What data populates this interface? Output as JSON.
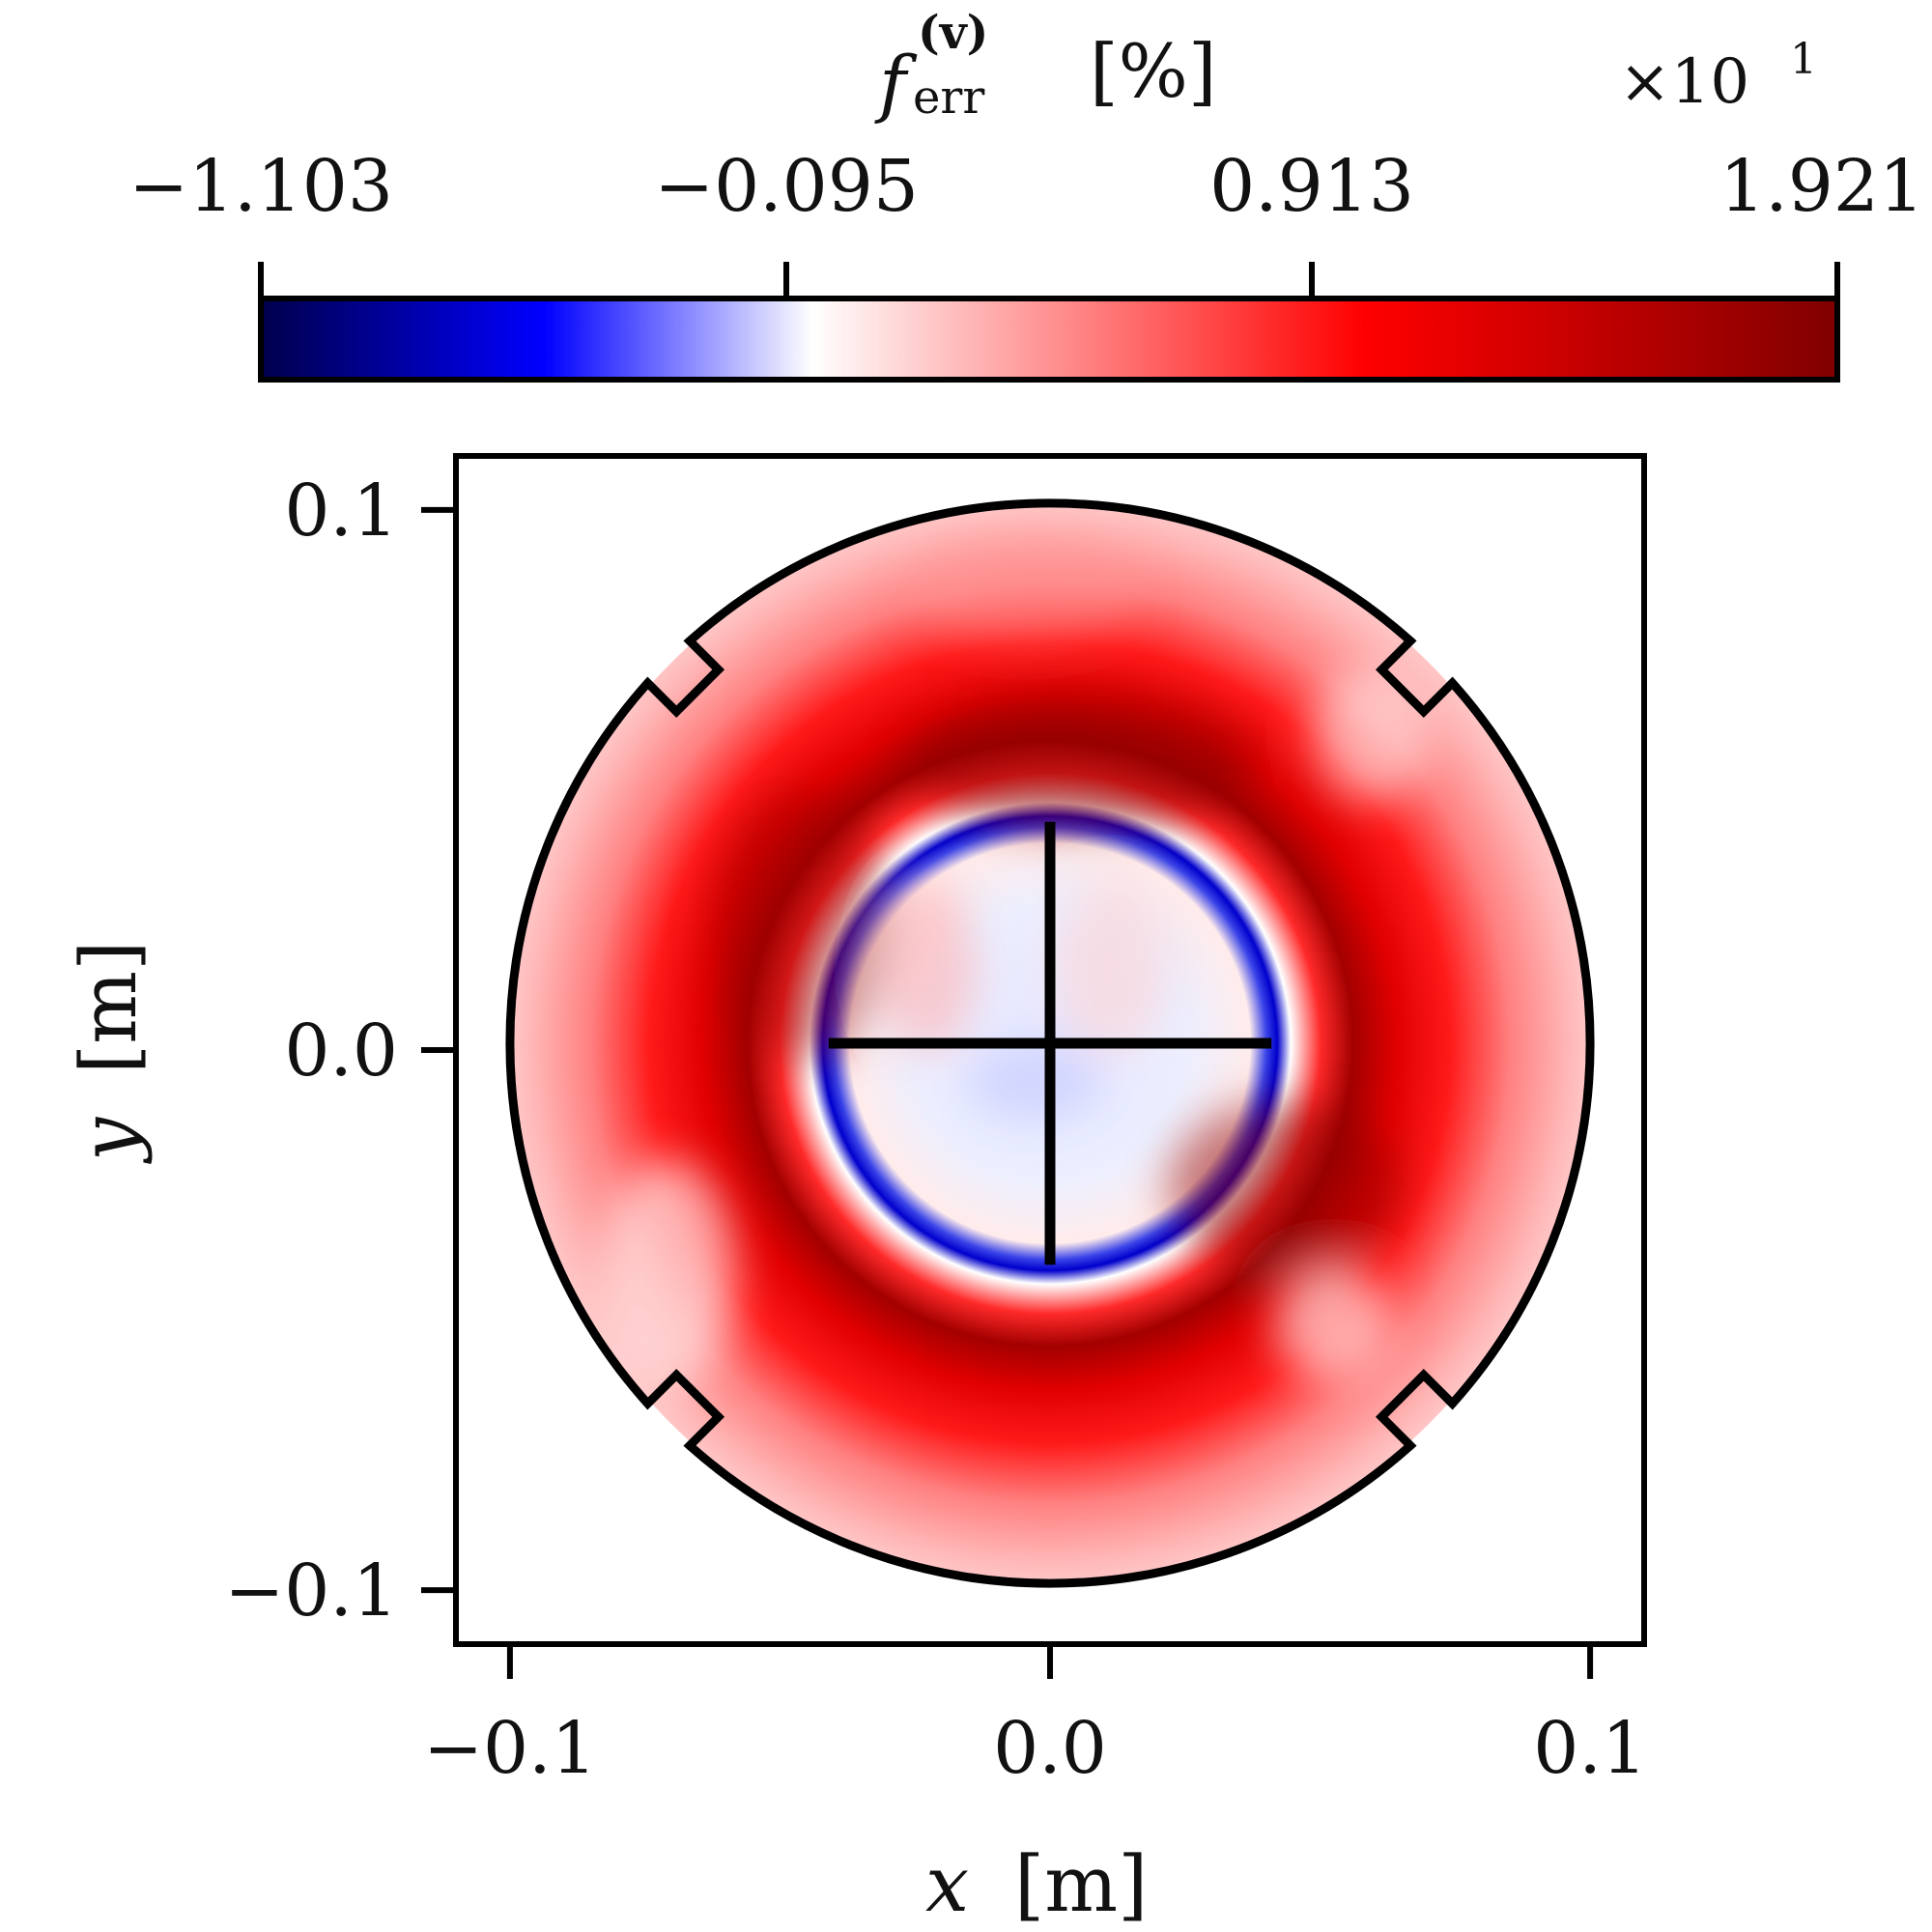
{
  "chart_data": {
    "type": "heatmap",
    "colorbar": {
      "label_main": "f",
      "label_sup": "(v)",
      "label_sub": "err",
      "label_unit": "[%]",
      "multiplier_base": "×10",
      "multiplier_exp": "1",
      "ticks": [
        -1.103,
        -0.095,
        0.913,
        1.921
      ],
      "tick_labels": [
        "−1.103",
        "−0.095",
        "0.913",
        "1.921"
      ],
      "vmin": -1.103,
      "vmax": 1.921,
      "colormap": "seismic",
      "colors": [
        "#00004c",
        "#0000ff",
        "#ffffff",
        "#ff0000",
        "#800000"
      ],
      "placement": "top"
    },
    "x_axis": {
      "label_var": "x",
      "label_unit": "[m]",
      "ticks": [
        -0.1,
        0.0,
        0.1
      ],
      "tick_labels": [
        "−0.1",
        "0.0",
        "0.1"
      ],
      "range": [
        -0.11,
        0.11
      ]
    },
    "y_axis": {
      "label_var": "y",
      "label_unit": "[m]",
      "ticks": [
        -0.1,
        0.0,
        0.1
      ],
      "tick_labels": [
        "−0.1",
        "0.0",
        "0.1"
      ],
      "range": [
        -0.11,
        0.11
      ]
    },
    "domain_outline": {
      "shape": "circle",
      "radius_m": 0.1,
      "notch_angles_deg": [
        45,
        135,
        225,
        315
      ],
      "center_cross_halfwidth_m": 0.041
    },
    "field_features": [
      {
        "feature": "outer-annulus",
        "r_m": 0.095,
        "value": 0.35
      },
      {
        "feature": "ring-peak",
        "r_m": 0.052,
        "value": 1.85
      },
      {
        "feature": "ring-midband",
        "r_m": 0.07,
        "value": 1.1
      },
      {
        "feature": "inner-edge",
        "r_m": 0.041,
        "value": -1.0
      },
      {
        "feature": "inner-core",
        "r_m": 0.02,
        "value": -0.05
      }
    ]
  }
}
